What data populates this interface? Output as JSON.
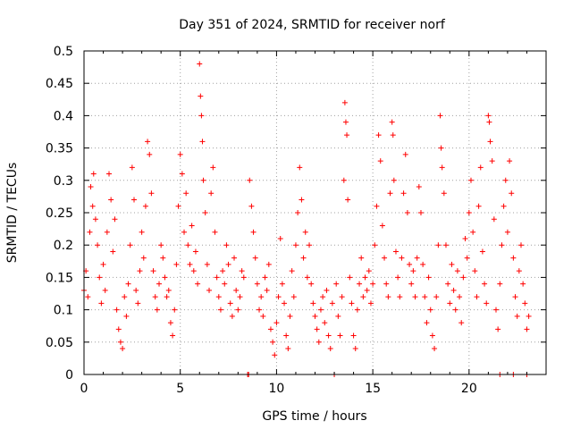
{
  "chart_data": {
    "type": "scatter",
    "title": "Day 351 of 2024, SRMTID for receiver norf",
    "xlabel": "GPS time / hours",
    "ylabel": "SRMTID / TECUs",
    "xlim": [
      0,
      24
    ],
    "ylim": [
      0,
      0.5
    ],
    "xticks": [
      "0",
      "5",
      "10",
      "15",
      "20"
    ],
    "yticks": [
      "0",
      "0.05",
      "0.1",
      "0.15",
      "0.2",
      "0.25",
      "0.3",
      "0.35",
      "0.4",
      "0.45",
      "0.5"
    ],
    "grid": true,
    "marker": "+",
    "color": "#ff0000",
    "series": [
      {
        "name": "SRMTID",
        "points": [
          [
            0.0,
            0.13
          ],
          [
            0.1,
            0.16
          ],
          [
            0.2,
            0.12
          ],
          [
            0.3,
            0.22
          ],
          [
            0.35,
            0.29
          ],
          [
            0.45,
            0.26
          ],
          [
            0.5,
            0.31
          ],
          [
            0.6,
            0.24
          ],
          [
            0.7,
            0.2
          ],
          [
            0.8,
            0.15
          ],
          [
            0.9,
            0.11
          ],
          [
            1.0,
            0.17
          ],
          [
            1.1,
            0.13
          ],
          [
            1.2,
            0.22
          ],
          [
            1.3,
            0.31
          ],
          [
            1.4,
            0.27
          ],
          [
            1.5,
            0.19
          ],
          [
            1.6,
            0.24
          ],
          [
            1.7,
            0.1
          ],
          [
            1.8,
            0.07
          ],
          [
            1.9,
            0.05
          ],
          [
            2.0,
            0.04
          ],
          [
            2.1,
            0.12
          ],
          [
            2.2,
            0.09
          ],
          [
            2.3,
            0.14
          ],
          [
            2.4,
            0.2
          ],
          [
            2.5,
            0.32
          ],
          [
            2.6,
            0.27
          ],
          [
            2.7,
            0.13
          ],
          [
            2.8,
            0.11
          ],
          [
            2.9,
            0.16
          ],
          [
            3.0,
            0.22
          ],
          [
            3.1,
            0.18
          ],
          [
            3.2,
            0.26
          ],
          [
            3.3,
            0.36
          ],
          [
            3.4,
            0.34
          ],
          [
            3.5,
            0.28
          ],
          [
            3.6,
            0.16
          ],
          [
            3.7,
            0.12
          ],
          [
            3.8,
            0.1
          ],
          [
            3.9,
            0.14
          ],
          [
            4.0,
            0.2
          ],
          [
            4.1,
            0.18
          ],
          [
            4.2,
            0.15
          ],
          [
            4.3,
            0.12
          ],
          [
            4.4,
            0.13
          ],
          [
            4.5,
            0.08
          ],
          [
            4.6,
            0.06
          ],
          [
            4.7,
            0.1
          ],
          [
            4.8,
            0.17
          ],
          [
            4.9,
            0.26
          ],
          [
            5.0,
            0.34
          ],
          [
            5.1,
            0.31
          ],
          [
            5.2,
            0.22
          ],
          [
            5.3,
            0.28
          ],
          [
            5.4,
            0.2
          ],
          [
            5.5,
            0.17
          ],
          [
            5.6,
            0.23
          ],
          [
            5.7,
            0.16
          ],
          [
            5.8,
            0.19
          ],
          [
            5.9,
            0.14
          ],
          [
            6.0,
            0.48
          ],
          [
            6.05,
            0.43
          ],
          [
            6.1,
            0.4
          ],
          [
            6.15,
            0.36
          ],
          [
            6.2,
            0.3
          ],
          [
            6.3,
            0.25
          ],
          [
            6.4,
            0.17
          ],
          [
            6.5,
            0.13
          ],
          [
            6.6,
            0.28
          ],
          [
            6.7,
            0.32
          ],
          [
            6.8,
            0.22
          ],
          [
            6.9,
            0.15
          ],
          [
            7.0,
            0.12
          ],
          [
            7.1,
            0.1
          ],
          [
            7.2,
            0.16
          ],
          [
            7.3,
            0.14
          ],
          [
            7.4,
            0.2
          ],
          [
            7.5,
            0.17
          ],
          [
            7.6,
            0.11
          ],
          [
            7.7,
            0.09
          ],
          [
            7.8,
            0.18
          ],
          [
            7.9,
            0.13
          ],
          [
            8.0,
            0.1
          ],
          [
            8.1,
            0.12
          ],
          [
            8.2,
            0.16
          ],
          [
            8.3,
            0.15
          ],
          [
            8.5,
            0.0
          ],
          [
            8.6,
            0.3
          ],
          [
            8.7,
            0.26
          ],
          [
            8.8,
            0.22
          ],
          [
            8.9,
            0.18
          ],
          [
            9.0,
            0.14
          ],
          [
            9.1,
            0.1
          ],
          [
            9.2,
            0.12
          ],
          [
            9.3,
            0.09
          ],
          [
            9.4,
            0.15
          ],
          [
            9.5,
            0.13
          ],
          [
            9.6,
            0.17
          ],
          [
            9.7,
            0.07
          ],
          [
            9.8,
            0.05
          ],
          [
            9.9,
            0.03
          ],
          [
            10.0,
            0.08
          ],
          [
            10.1,
            0.12
          ],
          [
            10.2,
            0.21
          ],
          [
            10.3,
            0.14
          ],
          [
            10.4,
            0.11
          ],
          [
            10.5,
            0.06
          ],
          [
            10.6,
            0.04
          ],
          [
            10.7,
            0.09
          ],
          [
            10.8,
            0.16
          ],
          [
            10.9,
            0.12
          ],
          [
            11.0,
            0.2
          ],
          [
            11.1,
            0.25
          ],
          [
            11.2,
            0.32
          ],
          [
            11.3,
            0.27
          ],
          [
            11.4,
            0.18
          ],
          [
            11.5,
            0.22
          ],
          [
            11.6,
            0.15
          ],
          [
            11.7,
            0.2
          ],
          [
            11.8,
            0.14
          ],
          [
            11.9,
            0.11
          ],
          [
            12.0,
            0.09
          ],
          [
            12.1,
            0.07
          ],
          [
            12.2,
            0.05
          ],
          [
            12.3,
            0.1
          ],
          [
            12.4,
            0.12
          ],
          [
            12.5,
            0.08
          ],
          [
            12.6,
            0.13
          ],
          [
            12.7,
            0.06
          ],
          [
            12.8,
            0.04
          ],
          [
            12.9,
            0.11
          ],
          [
            13.0,
            0.0
          ],
          [
            13.1,
            0.14
          ],
          [
            13.2,
            0.09
          ],
          [
            13.3,
            0.06
          ],
          [
            13.4,
            0.12
          ],
          [
            13.5,
            0.3
          ],
          [
            13.55,
            0.42
          ],
          [
            13.6,
            0.39
          ],
          [
            13.65,
            0.37
          ],
          [
            13.7,
            0.27
          ],
          [
            13.8,
            0.15
          ],
          [
            13.9,
            0.11
          ],
          [
            14.0,
            0.06
          ],
          [
            14.1,
            0.04
          ],
          [
            14.2,
            0.1
          ],
          [
            14.3,
            0.14
          ],
          [
            14.4,
            0.18
          ],
          [
            14.5,
            0.12
          ],
          [
            14.6,
            0.15
          ],
          [
            14.7,
            0.13
          ],
          [
            14.8,
            0.16
          ],
          [
            14.9,
            0.11
          ],
          [
            15.0,
            0.14
          ],
          [
            15.1,
            0.2
          ],
          [
            15.2,
            0.26
          ],
          [
            15.3,
            0.37
          ],
          [
            15.4,
            0.33
          ],
          [
            15.5,
            0.23
          ],
          [
            15.6,
            0.18
          ],
          [
            15.7,
            0.14
          ],
          [
            15.8,
            0.12
          ],
          [
            15.9,
            0.28
          ],
          [
            16.0,
            0.39
          ],
          [
            16.05,
            0.37
          ],
          [
            16.1,
            0.3
          ],
          [
            16.2,
            0.19
          ],
          [
            16.3,
            0.15
          ],
          [
            16.4,
            0.12
          ],
          [
            16.5,
            0.18
          ],
          [
            16.6,
            0.28
          ],
          [
            16.7,
            0.34
          ],
          [
            16.8,
            0.25
          ],
          [
            16.9,
            0.17
          ],
          [
            17.0,
            0.14
          ],
          [
            17.1,
            0.16
          ],
          [
            17.2,
            0.12
          ],
          [
            17.3,
            0.18
          ],
          [
            17.4,
            0.29
          ],
          [
            17.5,
            0.25
          ],
          [
            17.6,
            0.17
          ],
          [
            17.7,
            0.12
          ],
          [
            17.8,
            0.08
          ],
          [
            17.9,
            0.15
          ],
          [
            18.0,
            0.1
          ],
          [
            18.1,
            0.06
          ],
          [
            18.2,
            0.04
          ],
          [
            18.3,
            0.12
          ],
          [
            18.4,
            0.2
          ],
          [
            18.5,
            0.4
          ],
          [
            18.55,
            0.35
          ],
          [
            18.6,
            0.32
          ],
          [
            18.7,
            0.28
          ],
          [
            18.8,
            0.2
          ],
          [
            18.9,
            0.14
          ],
          [
            19.0,
            0.11
          ],
          [
            19.1,
            0.17
          ],
          [
            19.2,
            0.13
          ],
          [
            19.3,
            0.1
          ],
          [
            19.4,
            0.16
          ],
          [
            19.5,
            0.12
          ],
          [
            19.6,
            0.08
          ],
          [
            19.7,
            0.15
          ],
          [
            19.8,
            0.21
          ],
          [
            19.9,
            0.18
          ],
          [
            20.0,
            0.25
          ],
          [
            20.1,
            0.3
          ],
          [
            20.2,
            0.22
          ],
          [
            20.3,
            0.16
          ],
          [
            20.4,
            0.12
          ],
          [
            20.5,
            0.26
          ],
          [
            20.6,
            0.32
          ],
          [
            20.7,
            0.19
          ],
          [
            20.8,
            0.14
          ],
          [
            20.9,
            0.11
          ],
          [
            21.0,
            0.4
          ],
          [
            21.05,
            0.39
          ],
          [
            21.1,
            0.36
          ],
          [
            21.2,
            0.33
          ],
          [
            21.3,
            0.24
          ],
          [
            21.4,
            0.1
          ],
          [
            21.5,
            0.07
          ],
          [
            21.6,
            0.14
          ],
          [
            21.7,
            0.2
          ],
          [
            21.8,
            0.26
          ],
          [
            21.9,
            0.3
          ],
          [
            22.0,
            0.22
          ],
          [
            22.1,
            0.33
          ],
          [
            22.2,
            0.28
          ],
          [
            22.3,
            0.18
          ],
          [
            22.4,
            0.12
          ],
          [
            22.5,
            0.09
          ],
          [
            22.6,
            0.16
          ],
          [
            22.7,
            0.2
          ],
          [
            22.8,
            0.14
          ],
          [
            22.9,
            0.11
          ],
          [
            23.0,
            0.07
          ],
          [
            23.1,
            0.09
          ],
          [
            8.55,
            0.0
          ],
          [
            21.6,
            0.0
          ],
          [
            22.3,
            0.0
          ],
          [
            23.0,
            0.0
          ]
        ]
      }
    ]
  }
}
